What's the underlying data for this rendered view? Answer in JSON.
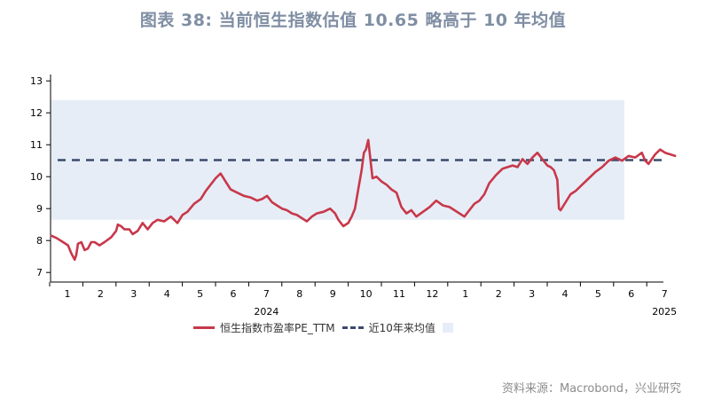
{
  "title": "图表 38: 当前恒生指数估值 10.65 略高于 10 年均值",
  "source": "资料来源：Macrobond，兴业研究",
  "colors": {
    "pe_line": "#c8384a",
    "mean_line": "#3b4a6b",
    "band": "#e6edf7",
    "title": "#7f8ea3"
  },
  "chart_data": {
    "type": "line",
    "title": "图表 38: 当前恒生指数估值 10.65 略高于 10 年均值",
    "xlabel": "",
    "ylabel": "",
    "ylim": [
      6.7,
      13.2
    ],
    "yticks": [
      7,
      8,
      9,
      10,
      11,
      12,
      13
    ],
    "grid": false,
    "legend_position": "bottom",
    "x_tick_labels": [
      "1",
      "2",
      "3",
      "4",
      "5",
      "6",
      "7",
      "8",
      "9",
      "10",
      "11",
      "12",
      "1",
      "2",
      "3",
      "4",
      "5",
      "6",
      "7"
    ],
    "year_labels": [
      {
        "label": "2024",
        "at_month": 7
      },
      {
        "label": "2025",
        "at_month": 19
      }
    ],
    "band": {
      "name": "",
      "low": 8.65,
      "high": 12.4
    },
    "mean": {
      "name": "近10年来均值",
      "value": 10.52
    },
    "series": [
      {
        "name": "恒生指数市盈率PE_TTM",
        "x": [
          0.0,
          0.15,
          0.35,
          0.5,
          0.6,
          0.7,
          0.75,
          0.8,
          0.9,
          1.0,
          1.1,
          1.2,
          1.3,
          1.45,
          1.6,
          1.8,
          1.95,
          2.0,
          2.1,
          2.2,
          2.35,
          2.45,
          2.6,
          2.75,
          2.9,
          3.05,
          3.2,
          3.4,
          3.6,
          3.8,
          3.95,
          4.1,
          4.3,
          4.5,
          4.65,
          4.8,
          4.95,
          5.1,
          5.25,
          5.4,
          5.6,
          5.8,
          6.0,
          6.2,
          6.35,
          6.5,
          6.65,
          6.8,
          6.95,
          7.1,
          7.25,
          7.4,
          7.55,
          7.7,
          7.85,
          8.0,
          8.2,
          8.4,
          8.55,
          8.65,
          8.8,
          8.95,
          9.05,
          9.15,
          9.25,
          9.35,
          9.42,
          9.48,
          9.55,
          9.62,
          9.68,
          9.8,
          9.95,
          10.1,
          10.25,
          10.4,
          10.55,
          10.7,
          10.85,
          11.0,
          11.2,
          11.4,
          11.6,
          11.8,
          12.0,
          12.15,
          12.3,
          12.45,
          12.6,
          12.75,
          12.9,
          13.05,
          13.2,
          13.4,
          13.6,
          13.75,
          13.9,
          14.05,
          14.2,
          14.35,
          14.5,
          14.65,
          14.8,
          14.95,
          15.05,
          15.15,
          15.25,
          15.3,
          15.35,
          15.5,
          15.65,
          15.8,
          16.0,
          16.2,
          16.4,
          16.6,
          16.8,
          17.0,
          17.2,
          17.4,
          17.6,
          17.8,
          17.9,
          18.0,
          18.2,
          18.35,
          18.5,
          18.65,
          18.8
        ],
        "values": [
          8.15,
          8.08,
          7.95,
          7.85,
          7.6,
          7.4,
          7.55,
          7.9,
          7.95,
          7.7,
          7.75,
          7.95,
          7.95,
          7.85,
          7.95,
          8.1,
          8.3,
          8.5,
          8.45,
          8.35,
          8.35,
          8.2,
          8.3,
          8.55,
          8.35,
          8.55,
          8.65,
          8.6,
          8.75,
          8.55,
          8.8,
          8.9,
          9.15,
          9.3,
          9.55,
          9.75,
          9.95,
          10.1,
          9.85,
          9.6,
          9.5,
          9.4,
          9.35,
          9.25,
          9.3,
          9.4,
          9.2,
          9.1,
          9.0,
          8.95,
          8.85,
          8.8,
          8.7,
          8.6,
          8.75,
          8.85,
          8.9,
          9.0,
          8.85,
          8.65,
          8.45,
          8.55,
          8.75,
          9.0,
          9.6,
          10.2,
          10.75,
          10.85,
          11.15,
          10.5,
          9.95,
          10.0,
          9.85,
          9.75,
          9.6,
          9.5,
          9.05,
          8.85,
          8.95,
          8.75,
          8.9,
          9.05,
          9.25,
          9.1,
          9.05,
          8.95,
          8.85,
          8.75,
          8.95,
          9.15,
          9.25,
          9.45,
          9.8,
          10.05,
          10.25,
          10.3,
          10.35,
          10.3,
          10.55,
          10.4,
          10.6,
          10.75,
          10.55,
          10.35,
          10.3,
          10.2,
          9.9,
          9.0,
          8.95,
          9.2,
          9.45,
          9.55,
          9.75,
          9.95,
          10.15,
          10.3,
          10.5,
          10.6,
          10.5,
          10.65,
          10.6,
          10.75,
          10.5,
          10.4,
          10.7,
          10.85,
          10.75,
          10.7,
          10.65
        ]
      }
    ]
  }
}
